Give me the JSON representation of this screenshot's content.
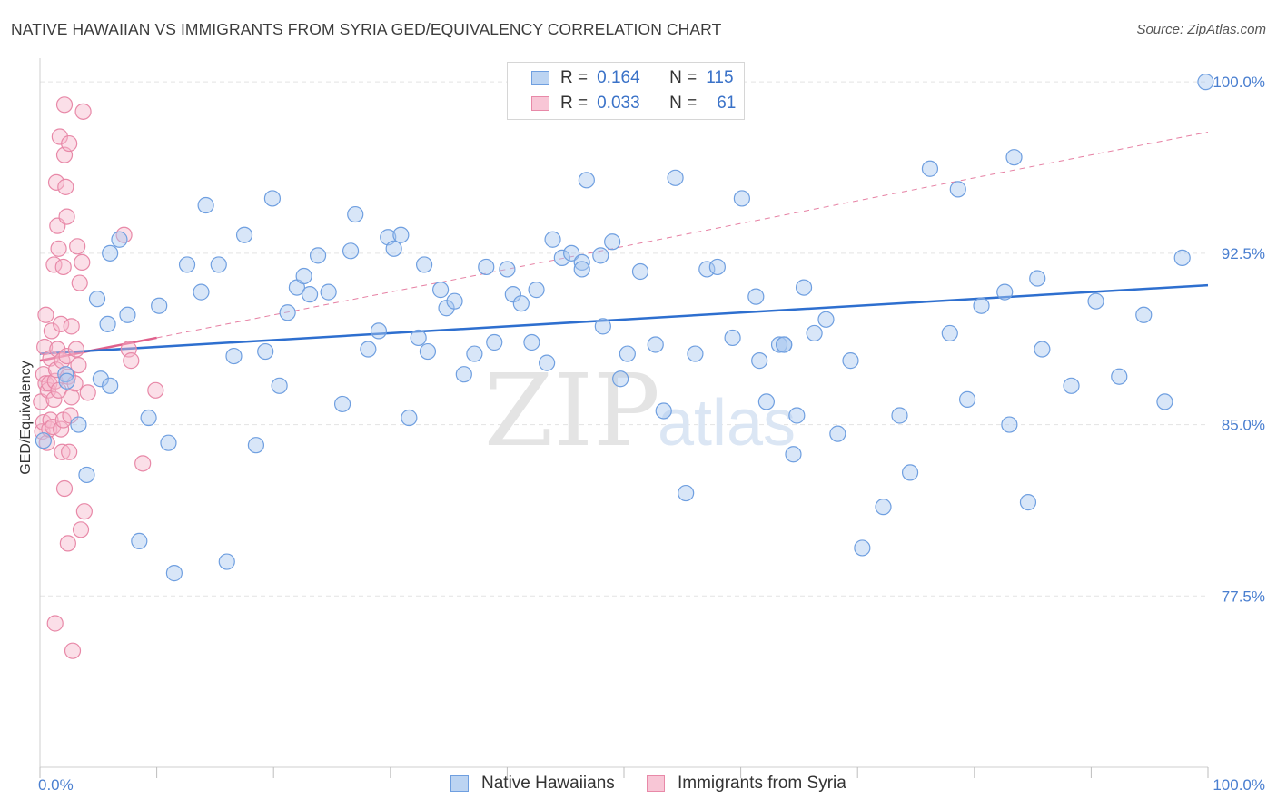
{
  "title": "NATIVE HAWAIIAN VS IMMIGRANTS FROM SYRIA GED/EQUIVALENCY CORRELATION CHART",
  "source": "Source: ZipAtlas.com",
  "legend": {
    "rows": [
      {
        "r_label": "R =",
        "r_value": "0.164",
        "n_label": "N =",
        "n_value": "115"
      },
      {
        "r_label": "R =",
        "r_value": "0.033",
        "n_label": "N =",
        "n_value": "61"
      }
    ]
  },
  "bottom_legend": [
    "Native Hawaiians",
    "Immigrants from Syria"
  ],
  "watermark": {
    "zip": "ZIP",
    "atlas": "atlas"
  },
  "colors": {
    "blue_fill": "#a9c7ef",
    "blue_stroke": "#6f9fe0",
    "blue_line": "#2e6fcf",
    "pink_fill": "#f6b9cd",
    "pink_stroke": "#e889a8",
    "pink_line": "#e0608c",
    "tick_text": "#4a7fd0"
  },
  "chart_data": {
    "type": "scatter",
    "xlabel": "",
    "ylabel": "GED/Equivalency",
    "xlim": [
      0,
      100
    ],
    "ylim": [
      70.0,
      100.8
    ],
    "x_tick_labels": [
      "0.0%",
      "100.0%"
    ],
    "y_ticks": [
      77.5,
      85.0,
      92.5,
      100.0
    ],
    "y_tick_labels": [
      "77.5%",
      "85.0%",
      "92.5%",
      "100.0%"
    ],
    "grid": true,
    "series": [
      {
        "name": "Native Hawaiians",
        "trend": {
          "x": [
            0,
            100
          ],
          "y": [
            88.1,
            91.1
          ]
        },
        "points": [
          [
            0.3,
            84.3
          ],
          [
            2.2,
            87.2
          ],
          [
            3.3,
            85.0
          ],
          [
            4.0,
            82.8
          ],
          [
            5.2,
            87.0
          ],
          [
            4.9,
            90.5
          ],
          [
            5.8,
            89.4
          ],
          [
            7.5,
            89.8
          ],
          [
            6.0,
            86.7
          ],
          [
            6.8,
            93.1
          ],
          [
            8.5,
            79.9
          ],
          [
            9.3,
            85.3
          ],
          [
            10.2,
            90.2
          ],
          [
            11.0,
            84.2
          ],
          [
            11.5,
            78.5
          ],
          [
            12.6,
            92.0
          ],
          [
            13.8,
            90.8
          ],
          [
            14.2,
            94.6
          ],
          [
            15.3,
            92.0
          ],
          [
            16.0,
            79.0
          ],
          [
            16.6,
            88.0
          ],
          [
            17.5,
            93.3
          ],
          [
            18.5,
            84.1
          ],
          [
            19.3,
            88.2
          ],
          [
            19.9,
            94.9
          ],
          [
            20.5,
            86.7
          ],
          [
            21.2,
            89.9
          ],
          [
            22.0,
            91.0
          ],
          [
            22.6,
            91.5
          ],
          [
            23.1,
            90.7
          ],
          [
            23.8,
            92.4
          ],
          [
            24.7,
            90.8
          ],
          [
            25.9,
            85.9
          ],
          [
            26.6,
            92.6
          ],
          [
            27.0,
            94.2
          ],
          [
            28.1,
            88.3
          ],
          [
            29.0,
            89.1
          ],
          [
            29.8,
            93.2
          ],
          [
            30.3,
            92.7
          ],
          [
            30.9,
            93.3
          ],
          [
            31.6,
            85.3
          ],
          [
            32.4,
            88.8
          ],
          [
            32.9,
            92.0
          ],
          [
            33.2,
            88.2
          ],
          [
            34.3,
            90.9
          ],
          [
            34.8,
            90.1
          ],
          [
            35.5,
            90.4
          ],
          [
            36.3,
            87.2
          ],
          [
            37.2,
            88.1
          ],
          [
            38.2,
            91.9
          ],
          [
            38.9,
            88.6
          ],
          [
            40.0,
            91.8
          ],
          [
            40.5,
            90.7
          ],
          [
            41.2,
            90.3
          ],
          [
            42.1,
            88.6
          ],
          [
            42.5,
            90.9
          ],
          [
            43.4,
            87.7
          ],
          [
            43.9,
            93.1
          ],
          [
            44.7,
            92.3
          ],
          [
            45.5,
            92.5
          ],
          [
            46.4,
            92.1
          ],
          [
            46.8,
            95.7
          ],
          [
            48.2,
            89.3
          ],
          [
            49.0,
            93.0
          ],
          [
            49.7,
            87.0
          ],
          [
            50.3,
            88.1
          ],
          [
            51.4,
            91.7
          ],
          [
            52.7,
            88.5
          ],
          [
            53.4,
            85.6
          ],
          [
            54.4,
            95.8
          ],
          [
            55.3,
            82.0
          ],
          [
            56.1,
            88.1
          ],
          [
            57.1,
            91.8
          ],
          [
            58.0,
            91.9
          ],
          [
            59.3,
            88.8
          ],
          [
            60.1,
            94.9
          ],
          [
            61.3,
            90.6
          ],
          [
            61.6,
            87.8
          ],
          [
            62.2,
            86.0
          ],
          [
            63.3,
            88.5
          ],
          [
            63.7,
            88.5
          ],
          [
            64.5,
            83.7
          ],
          [
            64.8,
            85.4
          ],
          [
            65.4,
            91.0
          ],
          [
            66.3,
            89.0
          ],
          [
            67.3,
            89.6
          ],
          [
            68.3,
            84.6
          ],
          [
            69.4,
            87.8
          ],
          [
            70.4,
            79.6
          ],
          [
            72.2,
            81.4
          ],
          [
            73.6,
            85.4
          ],
          [
            74.5,
            82.9
          ],
          [
            76.2,
            96.2
          ],
          [
            77.9,
            89.0
          ],
          [
            78.6,
            95.3
          ],
          [
            79.4,
            86.1
          ],
          [
            80.6,
            90.2
          ],
          [
            82.6,
            90.8
          ],
          [
            83.0,
            85.0
          ],
          [
            83.4,
            96.7
          ],
          [
            84.6,
            81.6
          ],
          [
            85.8,
            88.3
          ],
          [
            88.3,
            86.7
          ],
          [
            90.4,
            90.4
          ],
          [
            92.4,
            87.1
          ],
          [
            94.5,
            89.8
          ],
          [
            96.3,
            86.0
          ],
          [
            97.8,
            92.3
          ],
          [
            85.4,
            91.4
          ],
          [
            63.7,
            88.5
          ],
          [
            2.3,
            86.9
          ],
          [
            46.4,
            91.8
          ],
          [
            48.0,
            92.4
          ],
          [
            99.8,
            100.0
          ],
          [
            6.0,
            92.5
          ]
        ]
      },
      {
        "name": "Immigrants from Syria",
        "trend": {
          "x": [
            0,
            10
          ],
          "y": [
            87.8,
            88.8
          ]
        },
        "points": [
          [
            0.1,
            86.0
          ],
          [
            0.2,
            84.7
          ],
          [
            0.3,
            85.1
          ],
          [
            0.3,
            87.2
          ],
          [
            0.4,
            88.4
          ],
          [
            0.5,
            86.8
          ],
          [
            0.5,
            89.8
          ],
          [
            0.6,
            84.2
          ],
          [
            0.7,
            86.5
          ],
          [
            0.8,
            84.8
          ],
          [
            0.8,
            86.8
          ],
          [
            0.9,
            87.9
          ],
          [
            0.9,
            85.2
          ],
          [
            1.0,
            89.1
          ],
          [
            1.1,
            84.9
          ],
          [
            1.2,
            86.1
          ],
          [
            1.2,
            92.0
          ],
          [
            1.3,
            86.9
          ],
          [
            1.3,
            76.3
          ],
          [
            1.4,
            87.4
          ],
          [
            1.4,
            95.6
          ],
          [
            1.5,
            88.3
          ],
          [
            1.5,
            93.7
          ],
          [
            1.6,
            86.5
          ],
          [
            1.6,
            92.7
          ],
          [
            1.7,
            97.6
          ],
          [
            1.8,
            84.8
          ],
          [
            1.8,
            89.4
          ],
          [
            1.9,
            83.8
          ],
          [
            1.9,
            87.8
          ],
          [
            2.0,
            85.2
          ],
          [
            2.0,
            91.9
          ],
          [
            2.1,
            99.0
          ],
          [
            2.1,
            96.8
          ],
          [
            2.1,
            82.2
          ],
          [
            2.2,
            95.4
          ],
          [
            2.3,
            94.1
          ],
          [
            2.3,
            88.0
          ],
          [
            2.4,
            79.8
          ],
          [
            2.4,
            87.1
          ],
          [
            2.5,
            97.3
          ],
          [
            2.5,
            83.8
          ],
          [
            2.6,
            85.4
          ],
          [
            2.7,
            89.3
          ],
          [
            2.7,
            86.2
          ],
          [
            2.8,
            75.1
          ],
          [
            3.0,
            86.8
          ],
          [
            3.1,
            88.3
          ],
          [
            3.2,
            92.8
          ],
          [
            3.3,
            87.6
          ],
          [
            3.4,
            91.2
          ],
          [
            3.5,
            80.4
          ],
          [
            3.6,
            92.1
          ],
          [
            3.8,
            81.2
          ],
          [
            4.1,
            86.4
          ],
          [
            7.2,
            93.3
          ],
          [
            7.6,
            88.3
          ],
          [
            7.8,
            87.8
          ],
          [
            8.8,
            83.3
          ],
          [
            9.9,
            86.5
          ],
          [
            3.7,
            98.7
          ]
        ]
      }
    ]
  }
}
